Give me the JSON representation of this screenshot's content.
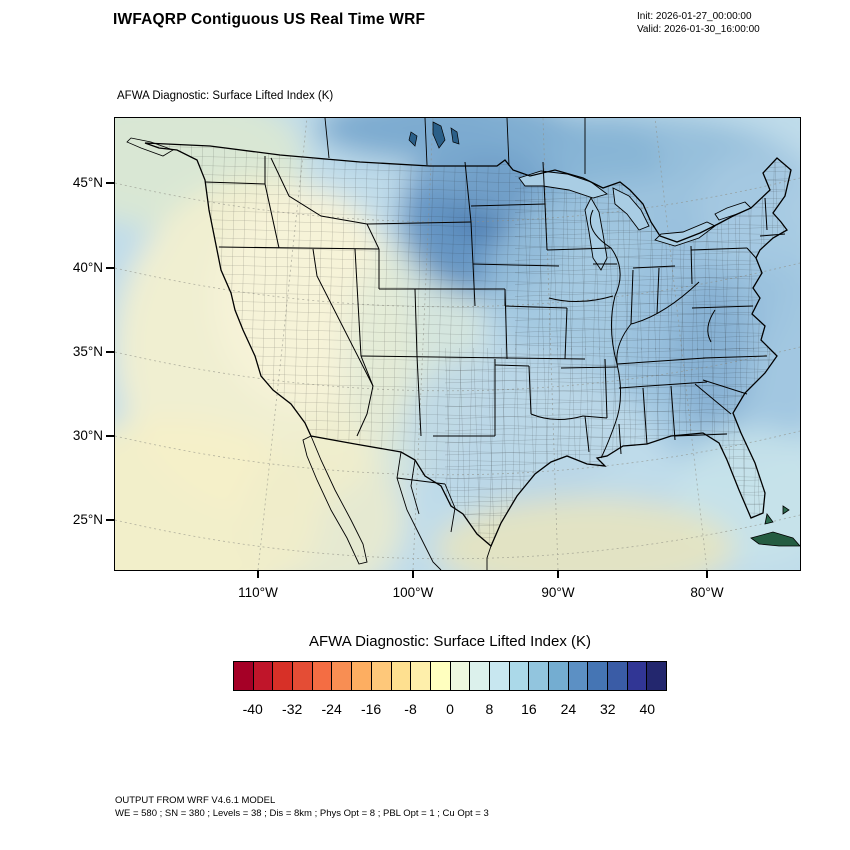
{
  "header": {
    "title": "IWFAQRP Contiguous US Real Time WRF",
    "init_label": "Init: 2026-01-27_00:00:00",
    "valid_label": "Valid: 2026-01-30_16:00:00"
  },
  "map": {
    "subtitle": "AFWA Diagnostic: Surface Lifted Index   (K)",
    "lat_ticks": [
      "45°N",
      "40°N",
      "35°N",
      "30°N",
      "25°N"
    ],
    "lon_ticks": [
      "110°W",
      "100°W",
      "90°W",
      "80°W"
    ]
  },
  "colorbar": {
    "title": "AFWA Diagnostic: Surface Lifted Index  (K)",
    "tick_labels": [
      "-40",
      "-32",
      "-24",
      "-16",
      "-8",
      "0",
      "8",
      "16",
      "24",
      "32",
      "40"
    ],
    "colors": [
      "#a50026",
      "#c0152a",
      "#d73027",
      "#e44d35",
      "#f46d43",
      "#f88e53",
      "#fdae61",
      "#fec87a",
      "#fee090",
      "#feefab",
      "#ffffbf",
      "#eef8e0",
      "#dcf1ec",
      "#c8e7f0",
      "#abd9e9",
      "#92c5de",
      "#74add1",
      "#5c90c4",
      "#4575b4",
      "#3a5ca6",
      "#313695",
      "#23276e"
    ]
  },
  "footer": {
    "line1": "OUTPUT FROM WRF V4.6.1 MODEL",
    "line2": "WE = 580 ; SN = 380 ; Levels = 38 ; Dis = 8km ; Phys Opt = 8 ; PBL Opt = 1 ; Cu Opt = 3"
  },
  "chart_data": {
    "type": "heatmap",
    "title": "AFWA Diagnostic: Surface Lifted Index (K)",
    "variable": "Surface Lifted Index",
    "units": "K",
    "model": "WRF V4.6.1",
    "init_time": "2026-01-27_00:00:00",
    "valid_time": "2026-01-30_16:00:00",
    "x_tick_labels_lon": [
      "110°W",
      "100°W",
      "90°W",
      "80°W"
    ],
    "y_tick_labels_lat": [
      "45°N",
      "40°N",
      "35°N",
      "30°N",
      "25°N"
    ],
    "colorbar_boundaries": [
      -44,
      -40,
      -36,
      -32,
      -28,
      -24,
      -20,
      -16,
      -12,
      -8,
      -4,
      0,
      4,
      8,
      12,
      16,
      20,
      24,
      28,
      32,
      36,
      40,
      44
    ],
    "colorbar_tick_values": [
      -40,
      -32,
      -24,
      -16,
      -8,
      0,
      8,
      16,
      24,
      32,
      40
    ],
    "legend_position": "bottom",
    "grid": "dashed graticule over Lambert conformal CONUS map with state and county boundaries",
    "field_estimates_k": [
      {
        "region": "Pacific Northwest coast",
        "value": 4
      },
      {
        "region": "Great Basin / interior West",
        "value": 2
      },
      {
        "region": "Desert Southwest and subtropical Pacific corner",
        "value": 0
      },
      {
        "region": "Northern Plains core (Dakotas, Nebraska)",
        "value": 28
      },
      {
        "region": "Canadian Prairies (top of domain)",
        "value": 24
      },
      {
        "region": "Upper Midwest / Great Lakes",
        "value": 20
      },
      {
        "region": "Ohio Valley and Appalachians",
        "value": 18
      },
      {
        "region": "Northeast US",
        "value": 16
      },
      {
        "region": "Central/southern Plains, Texas",
        "value": 10
      },
      {
        "region": "Gulf of Mexico near coast",
        "value": 4
      },
      {
        "region": "Florida and western Atlantic",
        "value": 8
      },
      {
        "region": "Northern Mexico east of Sierra",
        "value": 10
      }
    ]
  }
}
